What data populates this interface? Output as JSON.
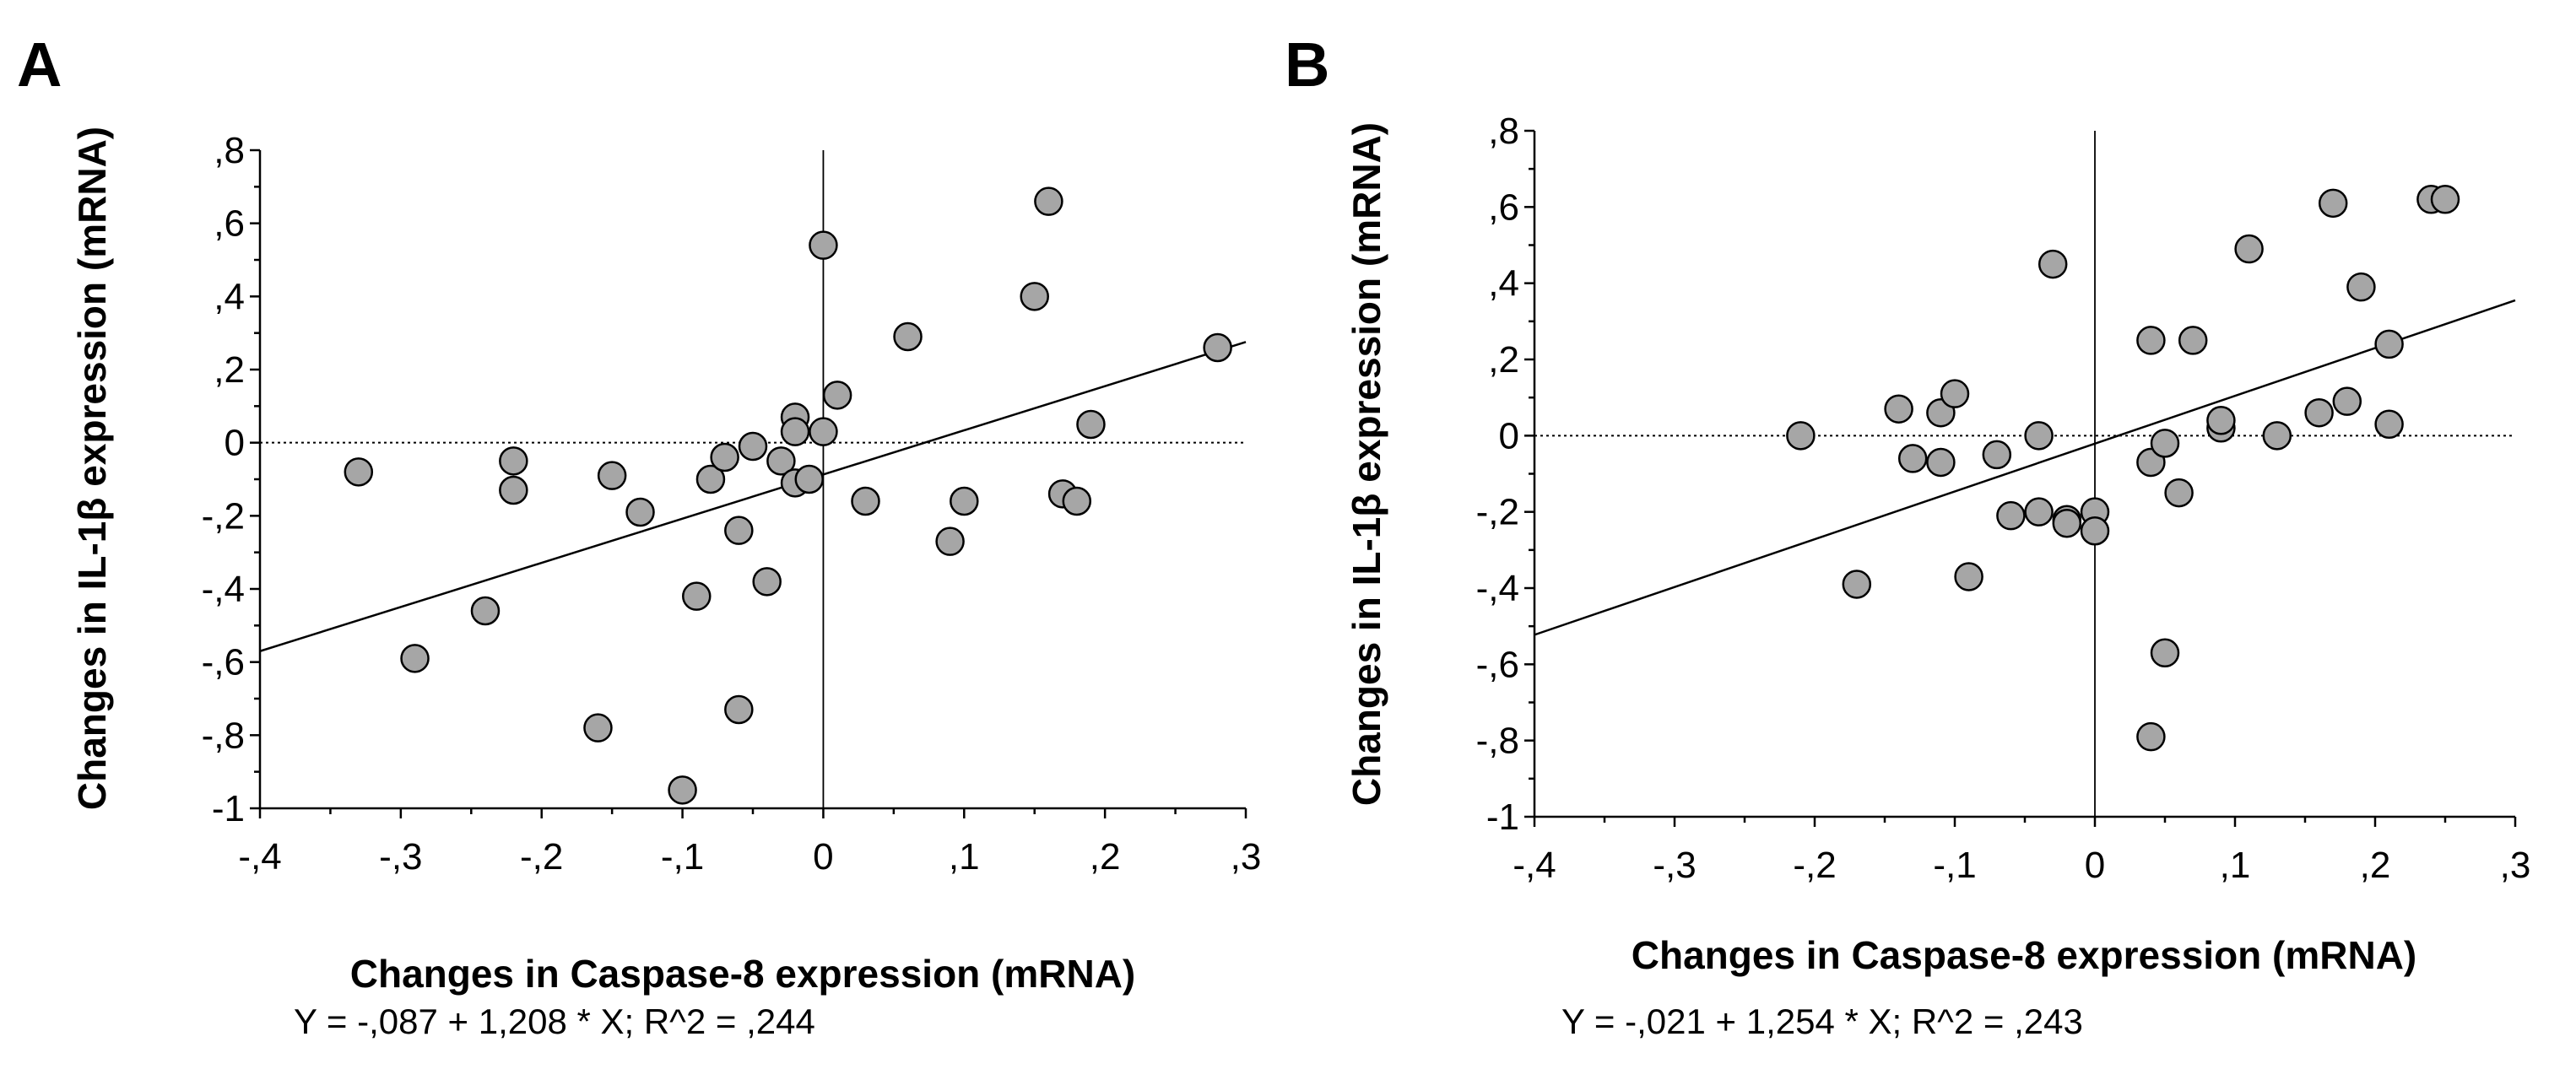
{
  "chart_data": [
    {
      "panel": "A",
      "type": "scatter",
      "xlabel": "Changes in Caspase-8 expression (mRNA)",
      "ylabel": "Changes in IL-1β expression  (mRNA)",
      "xlim": [
        -0.4,
        0.3
      ],
      "ylim": [
        -1.0,
        0.8
      ],
      "xticks": [
        -0.4,
        -0.3,
        -0.2,
        -0.1,
        0,
        0.1,
        0.2,
        0.3
      ],
      "xtick_labels": [
        "-,4",
        "-,3",
        "-,2",
        "-,1",
        "0",
        ",1",
        ",2",
        ",3"
      ],
      "yticks": [
        0.8,
        0.6,
        0.4,
        0.2,
        0,
        -0.2,
        -0.4,
        -0.6,
        -0.8,
        -1.0
      ],
      "ytick_labels": [
        ",8",
        ",6",
        ",4",
        ",2",
        "0",
        "-,2",
        "-,4",
        "-,6",
        "-,8",
        "-1"
      ],
      "equation": "Y = -,087 + 1,208 * X; R^2  = ,244",
      "fit": {
        "intercept": -0.087,
        "slope": 1.208,
        "r2": 0.244
      },
      "points": [
        {
          "x": -0.33,
          "y": -0.08
        },
        {
          "x": -0.29,
          "y": -0.59
        },
        {
          "x": -0.24,
          "y": -0.46
        },
        {
          "x": -0.22,
          "y": -0.05
        },
        {
          "x": -0.22,
          "y": -0.13
        },
        {
          "x": -0.16,
          "y": -0.78
        },
        {
          "x": -0.15,
          "y": -0.09
        },
        {
          "x": -0.13,
          "y": -0.19
        },
        {
          "x": -0.1,
          "y": -0.95
        },
        {
          "x": -0.09,
          "y": -0.42
        },
        {
          "x": -0.08,
          "y": -0.1
        },
        {
          "x": -0.07,
          "y": -0.04
        },
        {
          "x": -0.06,
          "y": -0.24
        },
        {
          "x": -0.06,
          "y": -0.73
        },
        {
          "x": -0.05,
          "y": -0.01
        },
        {
          "x": -0.04,
          "y": -0.38
        },
        {
          "x": -0.03,
          "y": -0.05
        },
        {
          "x": -0.02,
          "y": 0.07
        },
        {
          "x": -0.02,
          "y": 0.03
        },
        {
          "x": -0.02,
          "y": -0.11
        },
        {
          "x": -0.01,
          "y": -0.1
        },
        {
          "x": 0.0,
          "y": 0.54
        },
        {
          "x": 0.0,
          "y": 0.03
        },
        {
          "x": 0.01,
          "y": 0.13
        },
        {
          "x": 0.03,
          "y": -0.16
        },
        {
          "x": 0.06,
          "y": 0.29
        },
        {
          "x": 0.09,
          "y": -0.27
        },
        {
          "x": 0.1,
          "y": -0.16
        },
        {
          "x": 0.15,
          "y": 0.4
        },
        {
          "x": 0.16,
          "y": 0.66
        },
        {
          "x": 0.17,
          "y": -0.14
        },
        {
          "x": 0.18,
          "y": -0.16
        },
        {
          "x": 0.19,
          "y": 0.05
        },
        {
          "x": 0.28,
          "y": 0.26
        }
      ]
    },
    {
      "panel": "B",
      "type": "scatter",
      "xlabel": "Changes in Caspase-8 expression (mRNA)",
      "ylabel": "Changes in IL-1β expression  (mRNA)",
      "xlim": [
        -0.4,
        0.3
      ],
      "ylim": [
        -1.0,
        0.8
      ],
      "xticks": [
        -0.4,
        -0.3,
        -0.2,
        -0.1,
        0,
        0.1,
        0.2,
        0.3
      ],
      "xtick_labels": [
        "-,4",
        "-,3",
        "-,2",
        "-,1",
        "0",
        ",1",
        ",2",
        ",3"
      ],
      "yticks": [
        0.8,
        0.6,
        0.4,
        0.2,
        0,
        -0.2,
        -0.4,
        -0.6,
        -0.8,
        -1.0
      ],
      "ytick_labels": [
        ",8",
        ",6",
        ",4",
        ",2",
        "0",
        "-,2",
        "-,4",
        "-,6",
        "-,8",
        "-1"
      ],
      "equation": "Y = -,021 + 1,254 * X; R^2  = ,243",
      "fit": {
        "intercept": -0.021,
        "slope": 1.254,
        "r2": 0.243
      },
      "points": [
        {
          "x": -0.21,
          "y": 0.0
        },
        {
          "x": -0.17,
          "y": -0.39
        },
        {
          "x": -0.14,
          "y": 0.07
        },
        {
          "x": -0.13,
          "y": -0.06
        },
        {
          "x": -0.11,
          "y": 0.06
        },
        {
          "x": -0.11,
          "y": -0.07
        },
        {
          "x": -0.1,
          "y": 0.11
        },
        {
          "x": -0.09,
          "y": -0.37
        },
        {
          "x": -0.07,
          "y": -0.05
        },
        {
          "x": -0.06,
          "y": -0.21
        },
        {
          "x": -0.04,
          "y": 0.0
        },
        {
          "x": -0.04,
          "y": -0.2
        },
        {
          "x": -0.03,
          "y": 0.45
        },
        {
          "x": -0.02,
          "y": -0.22
        },
        {
          "x": -0.02,
          "y": -0.23
        },
        {
          "x": 0.0,
          "y": -0.2
        },
        {
          "x": 0.0,
          "y": -0.25
        },
        {
          "x": 0.04,
          "y": 0.25
        },
        {
          "x": 0.04,
          "y": -0.07
        },
        {
          "x": 0.04,
          "y": -0.79
        },
        {
          "x": 0.05,
          "y": -0.02
        },
        {
          "x": 0.05,
          "y": -0.57
        },
        {
          "x": 0.06,
          "y": -0.15
        },
        {
          "x": 0.07,
          "y": 0.25
        },
        {
          "x": 0.09,
          "y": 0.02
        },
        {
          "x": 0.09,
          "y": 0.04
        },
        {
          "x": 0.11,
          "y": 0.49
        },
        {
          "x": 0.13,
          "y": 0.0
        },
        {
          "x": 0.16,
          "y": 0.06
        },
        {
          "x": 0.17,
          "y": 0.61
        },
        {
          "x": 0.18,
          "y": 0.09
        },
        {
          "x": 0.19,
          "y": 0.39
        },
        {
          "x": 0.21,
          "y": 0.24
        },
        {
          "x": 0.21,
          "y": 0.03
        },
        {
          "x": 0.24,
          "y": 0.62
        },
        {
          "x": 0.25,
          "y": 0.62
        }
      ]
    }
  ]
}
